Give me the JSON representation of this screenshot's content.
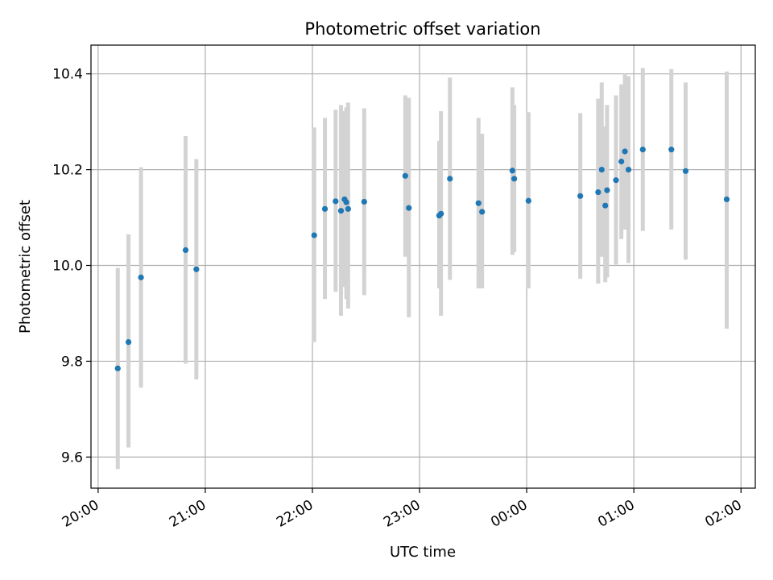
{
  "chart_data": {
    "type": "scatter",
    "title": "Photometric offset variation",
    "xlabel": "UTC time",
    "ylabel": "Photometric offset",
    "xlim": [
      "19:56",
      "02:08"
    ],
    "ylim": [
      9.535,
      10.46
    ],
    "grid": true,
    "x_ticks": [
      "20:00",
      "21:00",
      "22:00",
      "23:00",
      "00:00",
      "01:00",
      "02:00"
    ],
    "y_ticks": [
      9.6,
      9.8,
      10.0,
      10.2,
      10.4
    ],
    "y_tick_labels": [
      "9.6",
      "9.8",
      "10.0",
      "10.2",
      "10.4"
    ],
    "colors": {
      "point": "#1f77b4",
      "errorbar": "#d3d3d3",
      "grid": "#b0b0b0"
    },
    "series": [
      {
        "points": [
          {
            "x": "20:11",
            "y": 9.785,
            "ylow": 9.575,
            "yhigh": 9.995
          },
          {
            "x": "20:17",
            "y": 9.84,
            "ylow": 9.62,
            "yhigh": 10.065
          },
          {
            "x": "20:24",
            "y": 9.975,
            "ylow": 9.745,
            "yhigh": 10.205
          },
          {
            "x": "20:49",
            "y": 10.032,
            "ylow": 9.795,
            "yhigh": 10.27
          },
          {
            "x": "20:55",
            "y": 9.992,
            "ylow": 9.762,
            "yhigh": 10.222
          },
          {
            "x": "22:01",
            "y": 10.063,
            "ylow": 9.84,
            "yhigh": 10.288
          },
          {
            "x": "22:07",
            "y": 10.118,
            "ylow": 9.93,
            "yhigh": 10.308
          },
          {
            "x": "22:13",
            "y": 10.134,
            "ylow": 9.945,
            "yhigh": 10.325
          },
          {
            "x": "22:16",
            "y": 10.114,
            "ylow": 9.895,
            "yhigh": 10.335
          },
          {
            "x": "22:18",
            "y": 10.138,
            "ylow": 9.955,
            "yhigh": 10.322
          },
          {
            "x": "22:20",
            "y": 10.118,
            "ylow": 9.91,
            "yhigh": 10.34
          },
          {
            "x": "22:19",
            "y": 10.132,
            "ylow": 9.93,
            "yhigh": 10.33
          },
          {
            "x": "22:29",
            "y": 10.133,
            "ylow": 9.938,
            "yhigh": 10.328
          },
          {
            "x": "22:52",
            "y": 10.187,
            "ylow": 10.018,
            "yhigh": 10.355
          },
          {
            "x": "22:54",
            "y": 10.12,
            "ylow": 9.892,
            "yhigh": 10.35
          },
          {
            "x": "23:11",
            "y": 10.104,
            "ylow": 9.952,
            "yhigh": 10.26
          },
          {
            "x": "23:12",
            "y": 10.108,
            "ylow": 9.895,
            "yhigh": 10.322
          },
          {
            "x": "23:17",
            "y": 10.181,
            "ylow": 9.97,
            "yhigh": 10.392
          },
          {
            "x": "23:33",
            "y": 10.13,
            "ylow": 9.952,
            "yhigh": 10.308
          },
          {
            "x": "23:35",
            "y": 10.112,
            "ylow": 9.952,
            "yhigh": 10.275
          },
          {
            "x": "23:52",
            "y": 10.198,
            "ylow": 10.022,
            "yhigh": 10.372
          },
          {
            "x": "23:53",
            "y": 10.181,
            "ylow": 10.028,
            "yhigh": 10.335
          },
          {
            "x": "00:01",
            "y": 10.135,
            "ylow": 9.952,
            "yhigh": 10.32
          },
          {
            "x": "00:30",
            "y": 10.145,
            "ylow": 9.972,
            "yhigh": 10.318
          },
          {
            "x": "00:40",
            "y": 10.153,
            "ylow": 9.962,
            "yhigh": 10.348
          },
          {
            "x": "00:42",
            "y": 10.2,
            "ylow": 10.018,
            "yhigh": 10.382
          },
          {
            "x": "00:44",
            "y": 10.125,
            "ylow": 9.965,
            "yhigh": 10.29
          },
          {
            "x": "00:45",
            "y": 10.157,
            "ylow": 9.975,
            "yhigh": 10.335
          },
          {
            "x": "00:50",
            "y": 10.178,
            "ylow": 10.002,
            "yhigh": 10.355
          },
          {
            "x": "00:53",
            "y": 10.217,
            "ylow": 10.055,
            "yhigh": 10.378
          },
          {
            "x": "00:55",
            "y": 10.238,
            "ylow": 10.075,
            "yhigh": 10.4
          },
          {
            "x": "00:57",
            "y": 10.2,
            "ylow": 10.005,
            "yhigh": 10.395
          },
          {
            "x": "01:05",
            "y": 10.242,
            "ylow": 10.072,
            "yhigh": 10.412
          },
          {
            "x": "01:21",
            "y": 10.242,
            "ylow": 10.075,
            "yhigh": 10.41
          },
          {
            "x": "01:29",
            "y": 10.197,
            "ylow": 10.012,
            "yhigh": 10.382
          },
          {
            "x": "01:52",
            "y": 10.138,
            "ylow": 9.868,
            "yhigh": 10.405
          }
        ]
      }
    ]
  }
}
